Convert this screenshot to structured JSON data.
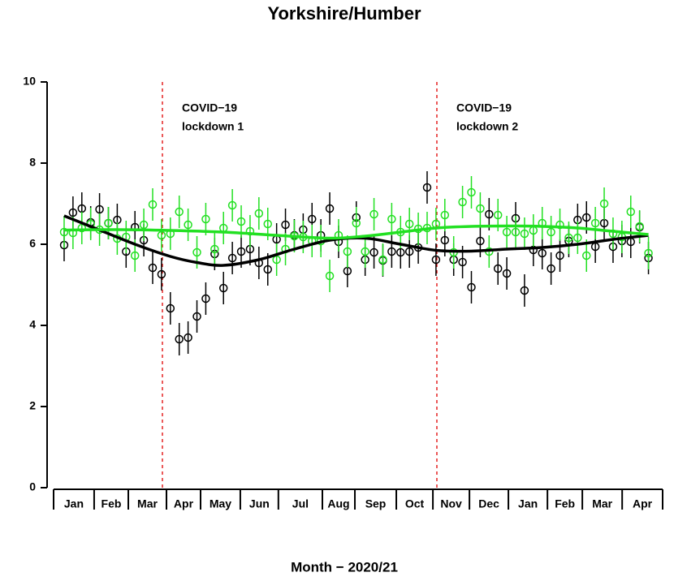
{
  "chart_data": {
    "type": "scatter",
    "title": "Yorkshire/Humber",
    "xlabel": "Month − 2020/21",
    "categories": [
      "Jan",
      "Feb",
      "Mar",
      "Apr",
      "May",
      "Jun",
      "Jul",
      "Aug",
      "Sep",
      "Oct",
      "Nov",
      "Dec",
      "Jan",
      "Feb",
      "Mar",
      "Apr"
    ],
    "xticks": [
      -1.19,
      3.39,
      7.25,
      11.56,
      15.41,
      19.9,
      24.2,
      29.17,
      32.84,
      37.52,
      41.65,
      45.78,
      50.18,
      54.59,
      58.53,
      63.03,
      67.6
    ],
    "xlim": [
      -1.19,
      67.6
    ],
    "ylim": [
      0,
      10
    ],
    "yticks": [
      0,
      2,
      4,
      6,
      8,
      10
    ],
    "x": [
      0,
      1,
      2,
      3,
      4,
      5,
      6,
      7,
      8,
      9,
      10,
      11,
      12,
      13,
      14,
      15,
      16,
      17,
      18,
      19,
      20,
      21,
      22,
      23,
      24,
      25,
      26,
      27,
      28,
      29,
      30,
      31,
      32,
      33,
      34,
      35,
      36,
      37,
      38,
      39,
      40,
      41,
      42,
      43,
      44,
      45,
      46,
      47,
      48,
      49,
      50,
      51,
      52,
      53,
      54,
      55,
      56,
      57,
      58,
      59,
      60,
      61,
      62,
      63,
      64,
      65,
      66
    ],
    "series": [
      {
        "color": "#000000",
        "error": 0.4,
        "values": [
          5.98,
          6.78,
          6.88,
          6.54,
          6.86,
          6.52,
          6.6,
          5.82,
          6.42,
          6.1,
          5.42,
          5.26,
          4.42,
          3.66,
          3.7,
          4.22,
          4.66,
          5.76,
          4.92,
          5.66,
          5.82,
          5.88,
          5.54,
          5.38,
          6.12,
          6.48,
          6.22,
          6.36,
          6.62,
          6.22,
          6.88,
          6.06,
          5.34,
          6.66,
          5.62,
          5.8,
          5.6,
          5.82,
          5.8,
          5.82,
          5.92,
          7.4,
          5.62,
          6.1,
          5.62,
          5.56,
          4.94,
          6.08,
          6.74,
          5.4,
          5.28,
          6.64,
          4.86,
          5.86,
          5.78,
          5.4,
          5.72,
          6.08,
          6.6,
          6.66,
          5.94,
          6.52,
          5.94,
          6.08,
          6.06,
          6.42,
          5.66
        ],
        "trend_x": [
          0,
          4,
          8,
          12,
          15,
          18,
          22,
          26,
          30,
          34,
          38,
          42,
          46,
          50,
          54,
          58,
          62,
          66
        ],
        "trend": [
          6.7,
          6.35,
          6.0,
          5.7,
          5.55,
          5.48,
          5.62,
          5.88,
          6.1,
          6.15,
          6.0,
          5.85,
          5.83,
          5.88,
          5.92,
          6.0,
          6.12,
          6.22
        ]
      },
      {
        "color": "#22e022",
        "error": 0.4,
        "values": [
          6.3,
          6.28,
          6.4,
          6.5,
          6.36,
          6.52,
          6.14,
          6.18,
          5.72,
          6.48,
          6.98,
          6.22,
          6.26,
          6.8,
          6.48,
          5.8,
          6.62,
          5.88,
          6.4,
          6.96,
          6.56,
          6.32,
          6.76,
          6.5,
          5.62,
          5.88,
          6.2,
          6.18,
          6.08,
          6.08,
          5.22,
          6.22,
          5.82,
          6.52,
          5.82,
          6.74,
          5.62,
          6.62,
          6.3,
          6.5,
          6.38,
          6.4,
          6.5,
          6.72,
          5.8,
          7.04,
          7.28,
          6.88,
          5.82,
          6.72,
          6.3,
          6.3,
          6.26,
          6.34,
          6.52,
          6.3,
          6.48,
          6.16,
          6.16,
          5.72,
          6.52,
          7.0,
          6.26,
          6.18,
          6.8,
          6.44,
          5.78
        ],
        "trend_x": [
          0,
          6,
          12,
          18,
          24,
          30,
          34,
          38,
          42,
          46,
          50,
          54,
          58,
          62,
          66
        ],
        "trend": [
          6.35,
          6.36,
          6.34,
          6.3,
          6.22,
          6.15,
          6.2,
          6.3,
          6.4,
          6.44,
          6.45,
          6.44,
          6.4,
          6.32,
          6.24
        ]
      }
    ],
    "vlines": [
      11.1,
      42.1
    ],
    "annotations": [
      [
        "COVID−19",
        "lockdown 1"
      ],
      [
        "COVID−19",
        "lockdown 2"
      ]
    ]
  }
}
